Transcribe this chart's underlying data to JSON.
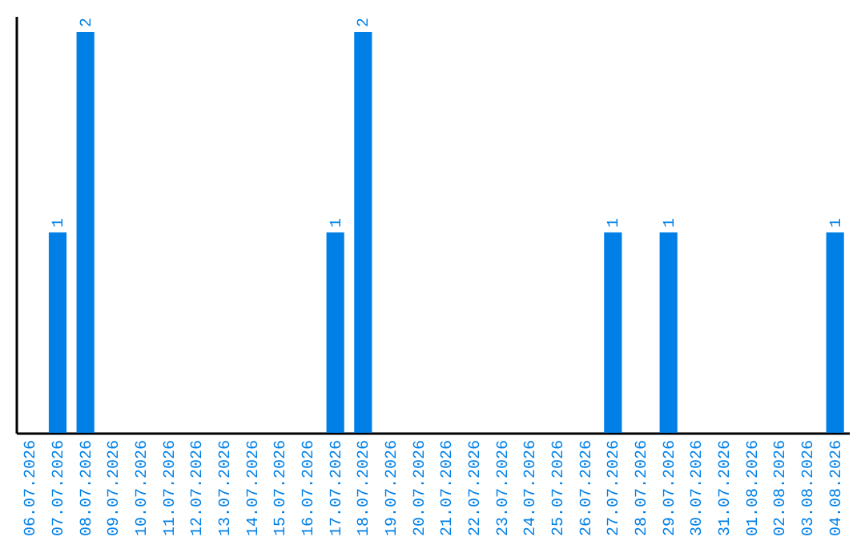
{
  "chart_data": {
    "type": "bar",
    "categories": [
      "06.07.2026",
      "07.07.2026",
      "08.07.2026",
      "09.07.2026",
      "10.07.2026",
      "11.07.2026",
      "12.07.2026",
      "13.07.2026",
      "14.07.2026",
      "15.07.2026",
      "16.07.2026",
      "17.07.2026",
      "18.07.2026",
      "19.07.2026",
      "20.07.2026",
      "21.07.2026",
      "22.07.2026",
      "23.07.2026",
      "24.07.2026",
      "25.07.2026",
      "26.07.2026",
      "27.07.2026",
      "28.07.2026",
      "29.07.2026",
      "30.07.2026",
      "31.07.2026",
      "01.08.2026",
      "02.08.2026",
      "03.08.2026",
      "04.08.2026"
    ],
    "values": [
      0,
      1,
      2,
      0,
      0,
      0,
      0,
      0,
      0,
      0,
      0,
      1,
      2,
      0,
      0,
      0,
      0,
      0,
      0,
      0,
      0,
      1,
      0,
      1,
      0,
      0,
      0,
      0,
      0,
      1
    ],
    "value_labels": [
      null,
      "1",
      "2",
      null,
      null,
      null,
      null,
      null,
      null,
      null,
      null,
      "1",
      "2",
      null,
      null,
      null,
      null,
      null,
      null,
      null,
      null,
      "1",
      null,
      "1",
      null,
      null,
      null,
      null,
      null,
      "1"
    ],
    "color": "#0080e6",
    "ylim": [
      0,
      2.08
    ],
    "tick_labels": "x"
  }
}
